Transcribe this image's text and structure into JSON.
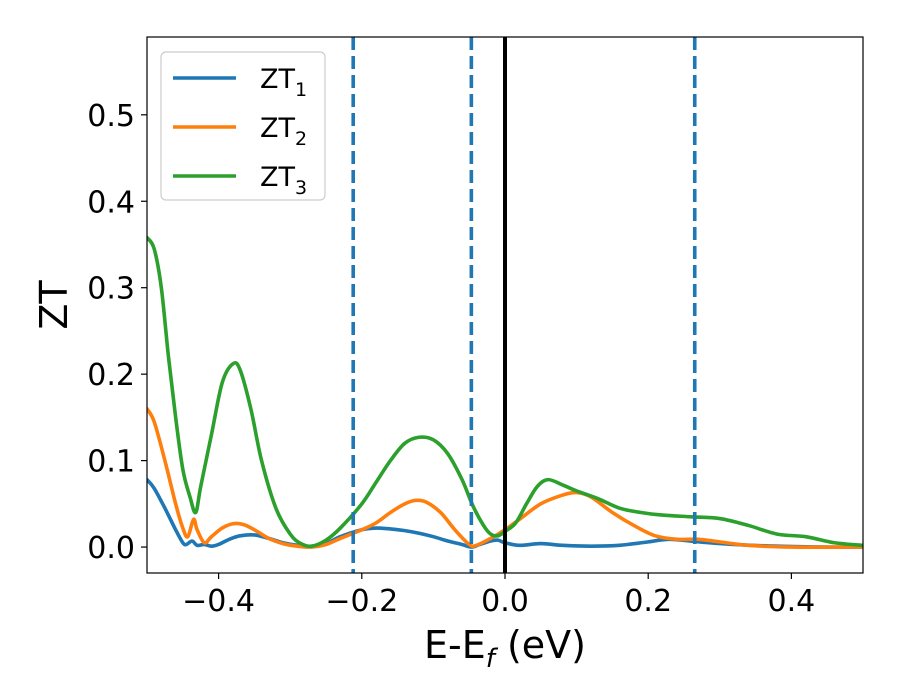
{
  "chart_data": {
    "type": "line",
    "xlabel": "E-E",
    "xlabel_sub": "f",
    "xlabel_unit": " (eV)",
    "ylabel": "ZT",
    "xlim": [
      -0.5,
      0.5
    ],
    "ylim": [
      -0.03,
      0.59
    ],
    "x_ticks": [
      -0.4,
      -0.2,
      0.0,
      0.2,
      0.4
    ],
    "x_tick_labels": [
      "−0.4",
      "−0.2",
      "0.0",
      "0.2",
      "0.4"
    ],
    "y_ticks": [
      0.0,
      0.1,
      0.2,
      0.3,
      0.4,
      0.5
    ],
    "y_tick_labels": [
      "0.0",
      "0.1",
      "0.2",
      "0.3",
      "0.4",
      "0.5"
    ],
    "grid": false,
    "legend_position": "top-left",
    "vertical_lines": [
      {
        "x": -0.212,
        "style": "dashed",
        "color": "#1f77b4"
      },
      {
        "x": -0.047,
        "style": "dashed",
        "color": "#1f77b4"
      },
      {
        "x": 0.0,
        "style": "solid",
        "color": "#000000"
      },
      {
        "x": 0.265,
        "style": "dashed",
        "color": "#1f77b4"
      }
    ],
    "series": [
      {
        "name": "ZT",
        "name_sub": "1",
        "color": "#1f77b4",
        "points": [
          [
            -0.5,
            0.078
          ],
          [
            -0.49,
            0.068
          ],
          [
            -0.475,
            0.045
          ],
          [
            -0.46,
            0.02
          ],
          [
            -0.45,
            0.005
          ],
          [
            -0.445,
            0.003
          ],
          [
            -0.437,
            0.007
          ],
          [
            -0.43,
            0.002
          ],
          [
            -0.42,
            0.003
          ],
          [
            -0.41,
            0.001
          ],
          [
            -0.4,
            0.003
          ],
          [
            -0.385,
            0.009
          ],
          [
            -0.37,
            0.013
          ],
          [
            -0.35,
            0.014
          ],
          [
            -0.33,
            0.01
          ],
          [
            -0.31,
            0.005
          ],
          [
            -0.29,
            0.002
          ],
          [
            -0.27,
            0.001
          ],
          [
            -0.25,
            0.004
          ],
          [
            -0.23,
            0.012
          ],
          [
            -0.2,
            0.02
          ],
          [
            -0.18,
            0.022
          ],
          [
            -0.16,
            0.021
          ],
          [
            -0.14,
            0.019
          ],
          [
            -0.12,
            0.016
          ],
          [
            -0.1,
            0.012
          ],
          [
            -0.08,
            0.007
          ],
          [
            -0.06,
            0.003
          ],
          [
            -0.047,
            0.0
          ],
          [
            -0.035,
            0.003
          ],
          [
            -0.02,
            0.007
          ],
          [
            -0.01,
            0.008
          ],
          [
            0.0,
            0.005
          ],
          [
            0.02,
            0.002
          ],
          [
            0.05,
            0.004
          ],
          [
            0.08,
            0.002
          ],
          [
            0.12,
            0.001
          ],
          [
            0.16,
            0.002
          ],
          [
            0.2,
            0.006
          ],
          [
            0.23,
            0.009
          ],
          [
            0.27,
            0.006
          ],
          [
            0.32,
            0.003
          ],
          [
            0.38,
            0.001
          ],
          [
            0.45,
            0.0
          ],
          [
            0.5,
            0.0
          ]
        ]
      },
      {
        "name": "ZT",
        "name_sub": "2",
        "color": "#ff7f0e",
        "points": [
          [
            -0.5,
            0.16
          ],
          [
            -0.49,
            0.145
          ],
          [
            -0.475,
            0.1
          ],
          [
            -0.46,
            0.05
          ],
          [
            -0.45,
            0.022
          ],
          [
            -0.443,
            0.012
          ],
          [
            -0.435,
            0.032
          ],
          [
            -0.43,
            0.02
          ],
          [
            -0.42,
            0.005
          ],
          [
            -0.41,
            0.012
          ],
          [
            -0.395,
            0.022
          ],
          [
            -0.38,
            0.027
          ],
          [
            -0.365,
            0.026
          ],
          [
            -0.35,
            0.02
          ],
          [
            -0.33,
            0.01
          ],
          [
            -0.31,
            0.004
          ],
          [
            -0.29,
            0.001
          ],
          [
            -0.27,
            0.0
          ],
          [
            -0.25,
            0.003
          ],
          [
            -0.23,
            0.01
          ],
          [
            -0.2,
            0.02
          ],
          [
            -0.18,
            0.028
          ],
          [
            -0.16,
            0.04
          ],
          [
            -0.14,
            0.05
          ],
          [
            -0.125,
            0.054
          ],
          [
            -0.11,
            0.052
          ],
          [
            -0.09,
            0.04
          ],
          [
            -0.07,
            0.02
          ],
          [
            -0.05,
            0.003
          ],
          [
            -0.04,
            0.002
          ],
          [
            -0.02,
            0.01
          ],
          [
            0.0,
            0.02
          ],
          [
            0.02,
            0.032
          ],
          [
            0.05,
            0.05
          ],
          [
            0.08,
            0.06
          ],
          [
            0.1,
            0.063
          ],
          [
            0.12,
            0.058
          ],
          [
            0.15,
            0.04
          ],
          [
            0.18,
            0.025
          ],
          [
            0.21,
            0.013
          ],
          [
            0.24,
            0.009
          ],
          [
            0.27,
            0.009
          ],
          [
            0.3,
            0.006
          ],
          [
            0.34,
            0.002
          ],
          [
            0.4,
            0.0
          ],
          [
            0.5,
            0.0
          ]
        ]
      },
      {
        "name": "ZT",
        "name_sub": "3",
        "color": "#2ca02c",
        "points": [
          [
            -0.5,
            0.358
          ],
          [
            -0.49,
            0.345
          ],
          [
            -0.48,
            0.3
          ],
          [
            -0.47,
            0.22
          ],
          [
            -0.46,
            0.15
          ],
          [
            -0.45,
            0.09
          ],
          [
            -0.44,
            0.058
          ],
          [
            -0.432,
            0.04
          ],
          [
            -0.425,
            0.07
          ],
          [
            -0.41,
            0.13
          ],
          [
            -0.395,
            0.19
          ],
          [
            -0.38,
            0.212
          ],
          [
            -0.37,
            0.205
          ],
          [
            -0.355,
            0.16
          ],
          [
            -0.34,
            0.1
          ],
          [
            -0.32,
            0.045
          ],
          [
            -0.3,
            0.015
          ],
          [
            -0.285,
            0.004
          ],
          [
            -0.27,
            0.001
          ],
          [
            -0.25,
            0.008
          ],
          [
            -0.23,
            0.022
          ],
          [
            -0.2,
            0.05
          ],
          [
            -0.18,
            0.075
          ],
          [
            -0.16,
            0.1
          ],
          [
            -0.14,
            0.12
          ],
          [
            -0.12,
            0.127
          ],
          [
            -0.1,
            0.124
          ],
          [
            -0.08,
            0.108
          ],
          [
            -0.06,
            0.078
          ],
          [
            -0.045,
            0.048
          ],
          [
            -0.03,
            0.025
          ],
          [
            -0.02,
            0.015
          ],
          [
            -0.01,
            0.013
          ],
          [
            0.0,
            0.018
          ],
          [
            0.015,
            0.028
          ],
          [
            0.03,
            0.05
          ],
          [
            0.045,
            0.07
          ],
          [
            0.06,
            0.078
          ],
          [
            0.08,
            0.072
          ],
          [
            0.1,
            0.065
          ],
          [
            0.13,
            0.056
          ],
          [
            0.16,
            0.045
          ],
          [
            0.19,
            0.04
          ],
          [
            0.22,
            0.037
          ],
          [
            0.26,
            0.035
          ],
          [
            0.3,
            0.033
          ],
          [
            0.34,
            0.025
          ],
          [
            0.38,
            0.015
          ],
          [
            0.42,
            0.012
          ],
          [
            0.46,
            0.005
          ],
          [
            0.5,
            0.002
          ]
        ]
      }
    ]
  }
}
